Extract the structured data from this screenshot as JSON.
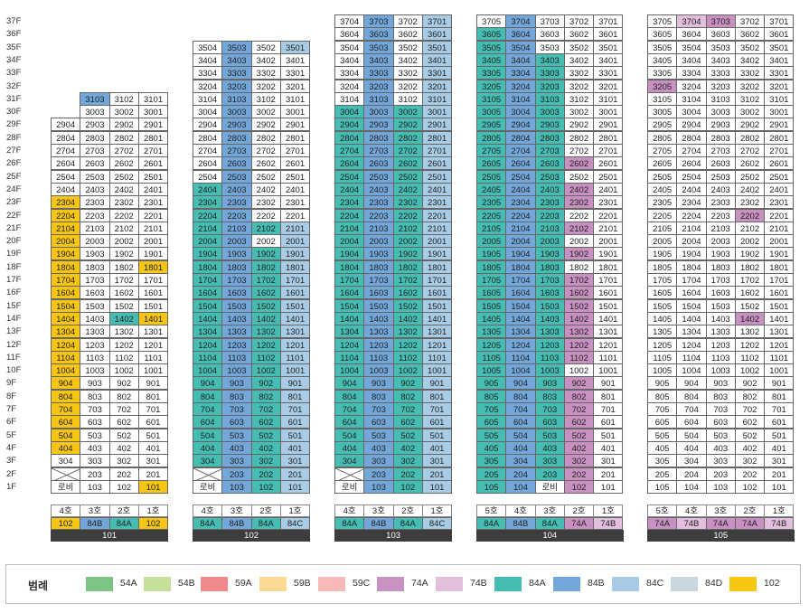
{
  "floors": [
    "37F",
    "36F",
    "35F",
    "34F",
    "33F",
    "32F",
    "31F",
    "30F",
    "29F",
    "28F",
    "27F",
    "26F",
    "25F",
    "24F",
    "23F",
    "22F",
    "21F",
    "20F",
    "19F",
    "18F",
    "17F",
    "16F",
    "15F",
    "14F",
    "13F",
    "12F",
    "11F",
    "10F",
    "9F",
    "8F",
    "7F",
    "6F",
    "5F",
    "4F",
    "3F",
    "2F",
    "1F"
  ],
  "lobby_label": "로비",
  "colors": {
    "54A": "#7dc384",
    "54B": "#c5e09a",
    "59A": "#ef8a8a",
    "59B": "#fdd996",
    "59C": "#f6b8b8",
    "74A": "#c990c2",
    "74B": "#e1bfdd",
    "84A": "#45bdb3",
    "84B": "#73a7da",
    "84C": "#a8cce6",
    "84D": "#c9d7e1",
    "102": "#f7c514"
  },
  "buildings": [
    {
      "name": "101",
      "top_floor": 29,
      "lobby_col": 3,
      "ho_labels": [
        "4호",
        "3호",
        "2호",
        "1호"
      ],
      "types": [
        "102",
        "84B",
        "84A",
        "102"
      ],
      "cols": [
        {
          "suffix": "04",
          "type": "102",
          "max": 29,
          "white": [
            29,
            28,
            27,
            26,
            25,
            24,
            3
          ]
        },
        {
          "suffix": "03",
          "type": "84B",
          "max": 31,
          "white": [
            30,
            29,
            28,
            27,
            26,
            25,
            24,
            23,
            22,
            21,
            20,
            19,
            18,
            17,
            16,
            15,
            14,
            13,
            12,
            11,
            10,
            9,
            8,
            7,
            6,
            5,
            4,
            3,
            2,
            1
          ]
        },
        {
          "suffix": "02",
          "type": "84A",
          "max": 31,
          "white": [
            31,
            30,
            29,
            28,
            27,
            26,
            25,
            24,
            23,
            22,
            21,
            20,
            19,
            18,
            17,
            16,
            15,
            13,
            12,
            11,
            10,
            9,
            8,
            7,
            6,
            5,
            4,
            3,
            2,
            1
          ]
        },
        {
          "suffix": "01",
          "type": "102",
          "max": 31,
          "white": [
            31,
            30,
            29,
            28,
            27,
            26,
            25,
            24,
            23,
            22,
            21,
            20,
            19,
            17,
            16,
            15,
            13,
            12,
            11,
            10,
            9,
            8,
            7,
            6,
            5,
            4,
            3,
            2
          ]
        }
      ],
      "fill_types": [
        "102",
        "84B",
        "84A",
        "102"
      ]
    },
    {
      "name": "102",
      "top_floor": 35,
      "lobby_col": 3,
      "ho_labels": [
        "4호",
        "3호",
        "2호",
        "1호"
      ],
      "types": [
        "84A",
        "84B",
        "84A",
        "84C"
      ],
      "cols": [
        {
          "suffix": "04",
          "type": "84A",
          "max": 35,
          "white": [
            35,
            34,
            33,
            32,
            31,
            30,
            29,
            28,
            27,
            26,
            25
          ]
        },
        {
          "suffix": "03",
          "type": "84B",
          "max": 35,
          "white": []
        },
        {
          "suffix": "02",
          "type": "84A",
          "max": 35,
          "white": [
            35,
            34,
            33,
            32,
            31,
            30,
            29,
            28,
            27,
            26,
            25,
            24,
            23,
            22,
            20
          ]
        },
        {
          "suffix": "01",
          "type": "84C",
          "max": 35,
          "white": [
            34,
            33,
            32,
            31,
            30,
            29,
            28,
            27,
            26,
            25,
            24,
            23,
            22
          ]
        }
      ]
    },
    {
      "name": "103",
      "top_floor": 37,
      "lobby_col": 3,
      "ho_labels": [
        "4호",
        "3호",
        "2호",
        "1호"
      ],
      "types": [
        "84A",
        "84B",
        "84A",
        "84C"
      ],
      "cols": [
        {
          "suffix": "04",
          "type": "84A",
          "max": 37,
          "white": [
            37,
            36,
            35,
            34,
            33,
            32,
            31
          ]
        },
        {
          "suffix": "03",
          "type": "84B",
          "max": 37,
          "white": []
        },
        {
          "suffix": "02",
          "type": "84A",
          "max": 37,
          "white": [
            37,
            36,
            35,
            34,
            33,
            32,
            31
          ]
        },
        {
          "suffix": "01",
          "type": "84C",
          "max": 37,
          "white": []
        }
      ]
    },
    {
      "name": "104",
      "top_floor": 37,
      "lobby_col": 2,
      "ho_labels": [
        "5호",
        "4호",
        "3호",
        "2호",
        "1호"
      ],
      "types": [
        "84A",
        "84B",
        "84A",
        "74A",
        "74B"
      ],
      "cols": [
        {
          "suffix": "05",
          "type": "84A",
          "max": 37,
          "white": [
            37
          ]
        },
        {
          "suffix": "04",
          "type": "84B",
          "max": 37,
          "white": []
        },
        {
          "suffix": "03",
          "type": "84A",
          "max": 37,
          "white": [
            37,
            36,
            35
          ]
        },
        {
          "suffix": "02",
          "type": "74A",
          "max": 37,
          "white": [
            37,
            36,
            35,
            34,
            33,
            32,
            31,
            30,
            29,
            28,
            27,
            25,
            22,
            20,
            18,
            10
          ]
        },
        {
          "suffix": "01",
          "type": "74B",
          "max": 37,
          "white": [
            37,
            36,
            35,
            34,
            33,
            32,
            31,
            30,
            29,
            28,
            27,
            26,
            25,
            24,
            23,
            22,
            21,
            20,
            19,
            18,
            17,
            16,
            15,
            14,
            13,
            12,
            11,
            10,
            9,
            8,
            7,
            6,
            5,
            4,
            3,
            2,
            1
          ]
        }
      ]
    },
    {
      "name": "105",
      "top_floor": 37,
      "lobby_col": -1,
      "ho_labels": [
        "5호",
        "4호",
        "3호",
        "2호",
        "1호"
      ],
      "types": [
        "74A",
        "74B",
        "74A",
        "74A",
        "74B"
      ],
      "cols": [
        {
          "suffix": "05",
          "type": "74A",
          "max": 37,
          "white": [
            37,
            36,
            35,
            34,
            33,
            31,
            30,
            29,
            28,
            27,
            26,
            25,
            24,
            23,
            22,
            21,
            20,
            19,
            18,
            17,
            16,
            15,
            14,
            13,
            12,
            11,
            10,
            9,
            8,
            7,
            6,
            5,
            4,
            3,
            2,
            1
          ]
        },
        {
          "suffix": "04",
          "type": "74B",
          "max": 37,
          "white": [
            36,
            35,
            34,
            33,
            32,
            31,
            30,
            29,
            28,
            27,
            26,
            25,
            24,
            23,
            22,
            21,
            20,
            19,
            18,
            17,
            16,
            15,
            14,
            13,
            12,
            11,
            10,
            9,
            8,
            7,
            6,
            5,
            4,
            3,
            2,
            1
          ]
        },
        {
          "suffix": "03",
          "type": "74A",
          "max": 37,
          "white": [
            36,
            35,
            34,
            33,
            32,
            31,
            30,
            29,
            28,
            27,
            26,
            25,
            24,
            23,
            22,
            21,
            20,
            19,
            18,
            17,
            16,
            15,
            14,
            13,
            12,
            11,
            10,
            9,
            8,
            7,
            6,
            5,
            4,
            3,
            2,
            1
          ]
        },
        {
          "suffix": "02",
          "type": "74A",
          "max": 37,
          "white": [
            37,
            36,
            35,
            34,
            33,
            32,
            31,
            30,
            29,
            28,
            27,
            26,
            25,
            24,
            23,
            21,
            20,
            19,
            18,
            17,
            16,
            15,
            13,
            12,
            11,
            10,
            9,
            8,
            7,
            6,
            5,
            4,
            3,
            2,
            1
          ]
        },
        {
          "suffix": "01",
          "type": "74B",
          "max": 37,
          "white": [
            37,
            36,
            35,
            34,
            33,
            32,
            31,
            30,
            29,
            28,
            27,
            26,
            25,
            24,
            23,
            22,
            21,
            20,
            19,
            18,
            17,
            16,
            15,
            14,
            13,
            12,
            11,
            10,
            9,
            8,
            7,
            6,
            5,
            4,
            3,
            2,
            1
          ]
        }
      ]
    }
  ],
  "legend": {
    "title": "범례",
    "items": [
      {
        "label": "54A",
        "color": "#7dc384"
      },
      {
        "label": "54B",
        "color": "#c5e09a"
      },
      {
        "label": "59A",
        "color": "#ef8a8a"
      },
      {
        "label": "59B",
        "color": "#fdd996"
      },
      {
        "label": "59C",
        "color": "#f6b8b8"
      },
      {
        "label": "74A",
        "color": "#c990c2"
      },
      {
        "label": "74B",
        "color": "#e1bfdd"
      },
      {
        "label": "84A",
        "color": "#45bdb3"
      },
      {
        "label": "84B",
        "color": "#73a7da"
      },
      {
        "label": "84C",
        "color": "#a8cce6"
      },
      {
        "label": "84D",
        "color": "#c9d7e1"
      },
      {
        "label": "102",
        "color": "#f7c514"
      }
    ]
  }
}
